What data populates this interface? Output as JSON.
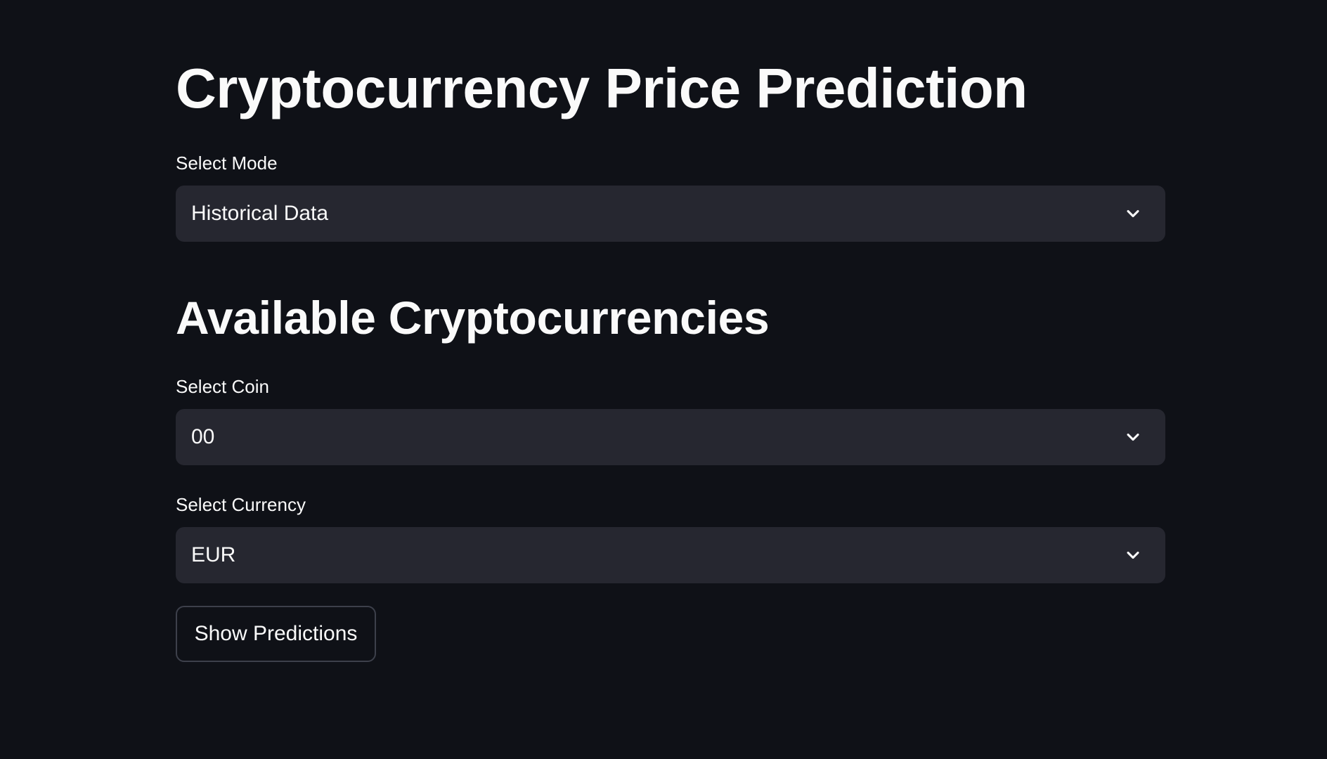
{
  "page": {
    "title": "Cryptocurrency Price Prediction",
    "background": "#0f1117"
  },
  "mode": {
    "label": "Select Mode",
    "value": "Historical Data",
    "icon": "chevron-down-icon"
  },
  "section": {
    "title": "Available Cryptocurrencies"
  },
  "coin": {
    "label": "Select Coin",
    "value": "00",
    "icon": "chevron-down-icon"
  },
  "currency": {
    "label": "Select Currency",
    "value": "EUR",
    "icon": "chevron-down-icon"
  },
  "actions": {
    "show_predictions_label": "Show Predictions"
  },
  "colors": {
    "select_background": "#262730",
    "button_border": "#3d404b",
    "text": "#fafafa"
  }
}
